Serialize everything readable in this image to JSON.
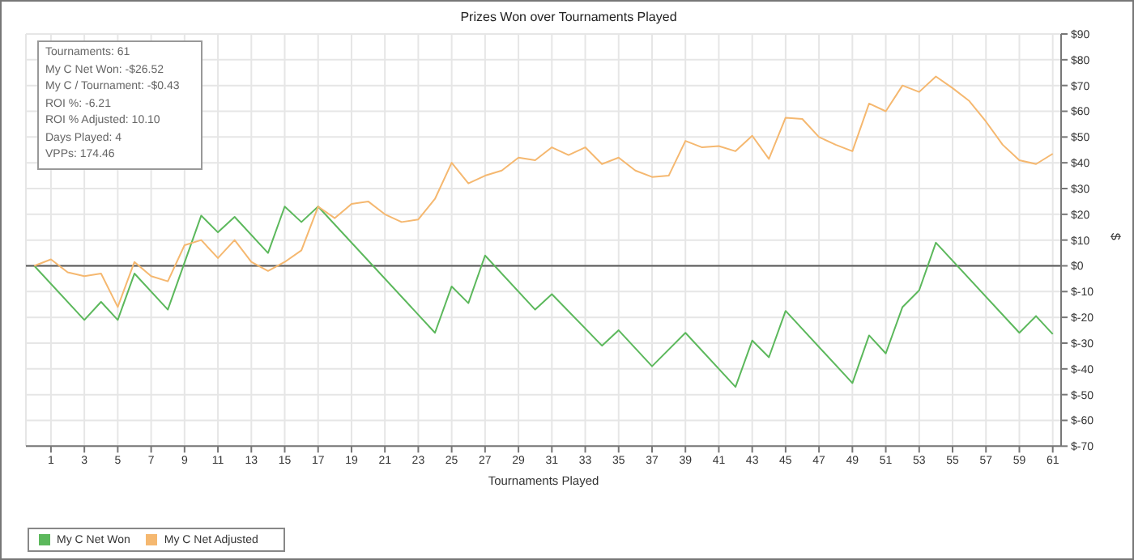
{
  "chart_data": {
    "type": "line",
    "title": "Prizes Won over Tournaments Played",
    "xlabel": "Tournaments Played",
    "ylabel": "$",
    "annotations": [
      "Tournaments: 61",
      "My C Net Won: -$26.52",
      "My C / Tournament: -$0.43",
      "ROI %: -6.21",
      "ROI % Adjusted: 10.10",
      "Days Played: 4",
      "VPPs: 174.46"
    ],
    "series": [
      {
        "name": "My C Net Won",
        "color": "#5cb85c",
        "x": [
          0,
          3,
          4,
          5,
          6,
          8,
          10,
          11,
          12,
          14,
          15,
          16,
          17,
          24,
          25,
          26,
          27,
          30,
          31,
          34,
          35,
          37,
          39,
          42,
          43,
          44,
          45,
          49,
          50,
          51,
          52,
          53,
          54,
          59,
          60,
          61
        ],
        "values": [
          0,
          -21,
          -14,
          -21,
          -3,
          -17,
          19.5,
          13,
          19,
          5,
          23,
          17,
          23,
          -26,
          -8,
          -14.5,
          4,
          -17,
          -11,
          -31,
          -25,
          -39,
          -26,
          -47,
          -29,
          -35.5,
          -17.5,
          -45.5,
          -27,
          -34,
          -16,
          -9.5,
          9,
          -26,
          -19.5,
          -26.5
        ]
      },
      {
        "name": "My C Net Adjusted",
        "color": "#f5b870",
        "x": [
          0,
          1,
          2,
          3,
          4,
          5,
          6,
          7,
          8,
          9,
          10,
          11,
          12,
          13,
          14,
          15,
          16,
          17,
          18,
          19,
          20,
          21,
          22,
          23,
          24,
          25,
          26,
          27,
          28,
          29,
          30,
          31,
          32,
          33,
          34,
          35,
          36,
          37,
          38,
          39,
          40,
          41,
          42,
          43,
          44,
          45,
          46,
          47,
          48,
          49,
          50,
          51,
          52,
          53,
          54,
          55,
          56,
          57,
          58,
          59,
          60,
          61
        ],
        "values": [
          0,
          2.5,
          -2.5,
          -4,
          -3,
          -16,
          1.5,
          -4,
          -6,
          8,
          10,
          3,
          10,
          1.5,
          -2,
          1.5,
          6,
          23,
          18.5,
          24,
          25,
          20,
          17,
          18,
          26,
          40,
          32,
          35,
          37,
          42,
          41,
          46,
          43,
          46,
          39.5,
          42,
          37,
          34.5,
          35,
          48.5,
          46,
          46.5,
          44.5,
          50.5,
          41.5,
          57.5,
          57,
          50,
          47,
          44.5,
          63,
          60,
          70,
          67.5,
          73.5,
          69,
          64,
          56,
          47,
          41,
          39.5,
          43.5
        ]
      }
    ],
    "xlim": [
      -0.5,
      61.5
    ],
    "xticks": [
      1,
      3,
      5,
      7,
      9,
      11,
      13,
      15,
      17,
      19,
      21,
      23,
      25,
      27,
      29,
      31,
      33,
      35,
      37,
      39,
      41,
      43,
      45,
      47,
      49,
      51,
      53,
      55,
      57,
      59,
      61
    ],
    "ylim": [
      -70,
      90
    ],
    "yticks": [
      {
        "value": 90,
        "label": "$90"
      },
      {
        "value": 80,
        "label": "$80"
      },
      {
        "value": 70,
        "label": "$70"
      },
      {
        "value": 60,
        "label": "$60"
      },
      {
        "value": 50,
        "label": "$50"
      },
      {
        "value": 40,
        "label": "$40"
      },
      {
        "value": 30,
        "label": "$30"
      },
      {
        "value": 20,
        "label": "$20"
      },
      {
        "value": 10,
        "label": "$10"
      },
      {
        "value": 0,
        "label": "$0"
      },
      {
        "value": -10,
        "label": "$-10"
      },
      {
        "value": -20,
        "label": "$-20"
      },
      {
        "value": -30,
        "label": "$-30"
      },
      {
        "value": -40,
        "label": "$-40"
      },
      {
        "value": -50,
        "label": "$-50"
      },
      {
        "value": -60,
        "label": "$-60"
      },
      {
        "value": -70,
        "label": "$-70"
      }
    ],
    "ref_lines": [
      {
        "axis": "y",
        "value": 0,
        "color": "#555555"
      }
    ],
    "grid": true,
    "legend": "bottom left",
    "marker": "none",
    "line_style": "solid"
  }
}
